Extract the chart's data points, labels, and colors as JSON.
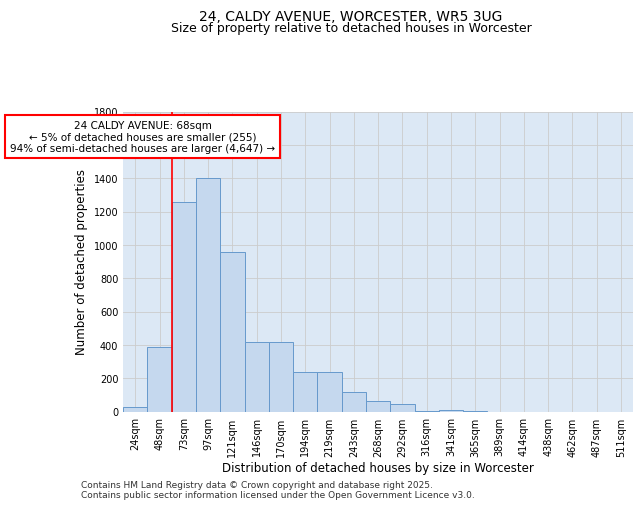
{
  "title_line1": "24, CALDY AVENUE, WORCESTER, WR5 3UG",
  "title_line2": "Size of property relative to detached houses in Worcester",
  "xlabel": "Distribution of detached houses by size in Worcester",
  "ylabel": "Number of detached properties",
  "categories": [
    "24sqm",
    "48sqm",
    "73sqm",
    "97sqm",
    "121sqm",
    "146sqm",
    "170sqm",
    "194sqm",
    "219sqm",
    "243sqm",
    "268sqm",
    "292sqm",
    "316sqm",
    "341sqm",
    "365sqm",
    "389sqm",
    "414sqm",
    "438sqm",
    "462sqm",
    "487sqm",
    "511sqm"
  ],
  "values": [
    25,
    390,
    1260,
    1400,
    955,
    420,
    420,
    235,
    235,
    115,
    65,
    45,
    5,
    12,
    5,
    0,
    0,
    0,
    0,
    0,
    0
  ],
  "bar_color": "#c5d8ee",
  "bar_edge_color": "#6699cc",
  "vline_color": "red",
  "vline_x": 2.0,
  "annotation_text": "24 CALDY AVENUE: 68sqm\n← 5% of detached houses are smaller (255)\n94% of semi-detached houses are larger (4,647) →",
  "annotation_box_facecolor": "white",
  "annotation_box_edgecolor": "red",
  "ylim": [
    0,
    1800
  ],
  "yticks": [
    0,
    200,
    400,
    600,
    800,
    1000,
    1200,
    1400,
    1600,
    1800
  ],
  "grid_color": "#cccccc",
  "bg_color": "#dce8f5",
  "footer_line1": "Contains HM Land Registry data © Crown copyright and database right 2025.",
  "footer_line2": "Contains public sector information licensed under the Open Government Licence v3.0.",
  "title_fontsize": 10,
  "subtitle_fontsize": 9,
  "axis_label_fontsize": 8.5,
  "tick_fontsize": 7,
  "annotation_fontsize": 7.5,
  "footer_fontsize": 6.5
}
